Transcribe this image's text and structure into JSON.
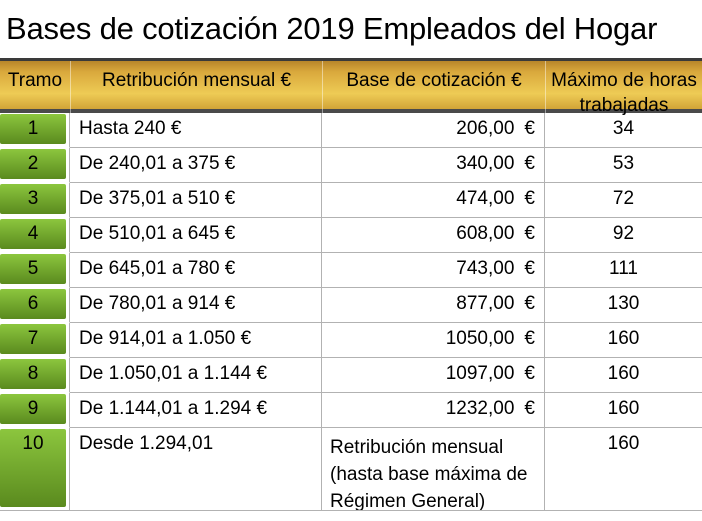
{
  "title": "Bases de cotización 2019 Empleados del Hogar",
  "table": {
    "headers": [
      "Tramo",
      "Retribución mensual €",
      "Base de cotización €",
      "Máximo de horas trabajadas"
    ],
    "rows": [
      {
        "tramo": "1",
        "retribucion": "Hasta 240 €",
        "base": "206,00",
        "currency": "€",
        "horas": "34"
      },
      {
        "tramo": "2",
        "retribucion": "De 240,01 a 375 €",
        "base": "340,00",
        "currency": "€",
        "horas": "53"
      },
      {
        "tramo": "3",
        "retribucion": "De 375,01 a 510 €",
        "base": "474,00",
        "currency": "€",
        "horas": "72"
      },
      {
        "tramo": "4",
        "retribucion": "De 510,01 a 645 €",
        "base": "608,00",
        "currency": "€",
        "horas": "92"
      },
      {
        "tramo": "5",
        "retribucion": "De 645,01 a 780 €",
        "base": "743,00",
        "currency": "€",
        "horas": "111"
      },
      {
        "tramo": "6",
        "retribucion": "De 780,01 a 914 €",
        "base": "877,00",
        "currency": "€",
        "horas": "130"
      },
      {
        "tramo": "7",
        "retribucion": "De 914,01 a 1.050 €",
        "base": "1050,00",
        "currency": "€",
        "horas": "160"
      },
      {
        "tramo": "8",
        "retribucion": "De 1.050,01 a 1.144 €",
        "base": "1097,00",
        "currency": "€",
        "horas": "160"
      },
      {
        "tramo": "9",
        "retribucion": "De 1.144,01 a 1.294 €",
        "base": "1232,00",
        "currency": "€",
        "horas": "160"
      },
      {
        "tramo": "10",
        "retribucion": "Desde 1.294,01",
        "base_text": "Retribución mensual (hasta base máxima de Régimen General)",
        "horas": "160"
      }
    ]
  },
  "colors": {
    "header_gold_top": "#b8862a",
    "header_gold_bright": "#eecb55",
    "green_top": "#8cc63e",
    "green_bottom": "#5a8a1e",
    "grid_line": "#b2b2b2",
    "heavy_line": "#4a4a4a"
  }
}
